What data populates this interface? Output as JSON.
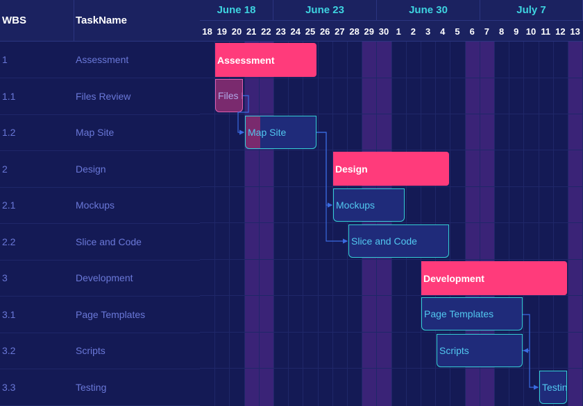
{
  "grid": {
    "headers": {
      "wbs": "WBS",
      "task_name": "TaskName"
    },
    "rows": [
      {
        "wbs": "1",
        "name": "Assessment"
      },
      {
        "wbs": "1.1",
        "name": "Files Review"
      },
      {
        "wbs": "1.2",
        "name": "Map Site"
      },
      {
        "wbs": "2",
        "name": "Design"
      },
      {
        "wbs": "2.1",
        "name": "Mockups"
      },
      {
        "wbs": "2.2",
        "name": "Slice and Code"
      },
      {
        "wbs": "3",
        "name": "Development"
      },
      {
        "wbs": "3.1",
        "name": "Page Templates"
      },
      {
        "wbs": "3.2",
        "name": "Scripts"
      },
      {
        "wbs": "3.3",
        "name": "Testing"
      }
    ]
  },
  "timeline": {
    "weeks": [
      "June 18",
      "June 23",
      "June 30",
      "July 7"
    ],
    "days": [
      "18",
      "19",
      "20",
      "21",
      "22",
      "23",
      "24",
      "25",
      "26",
      "27",
      "28",
      "29",
      "30",
      "1",
      "2",
      "3",
      "4",
      "5",
      "6",
      "7",
      "8",
      "9",
      "10",
      "11",
      "12",
      "13"
    ]
  },
  "bars": [
    {
      "label": "Assessment",
      "type": "parent"
    },
    {
      "label": "Files Review",
      "type": "critical"
    },
    {
      "label": "Map Site",
      "type": "task"
    },
    {
      "label": "Design",
      "type": "parent"
    },
    {
      "label": "Mockups",
      "type": "task"
    },
    {
      "label": "Slice and Code",
      "type": "task"
    },
    {
      "label": "Development",
      "type": "parent"
    },
    {
      "label": "Page Templates",
      "type": "task"
    },
    {
      "label": "Scripts",
      "type": "task"
    },
    {
      "label": "Testing",
      "type": "task"
    }
  ],
  "colors": {
    "background": "#141a55",
    "header": "#1b2260",
    "weekend": "#3a2377",
    "parent_bar": "#ff3b7b",
    "task_border": "#35cfd6",
    "link": "#3a6be0",
    "week_text": "#3ed3e0"
  }
}
